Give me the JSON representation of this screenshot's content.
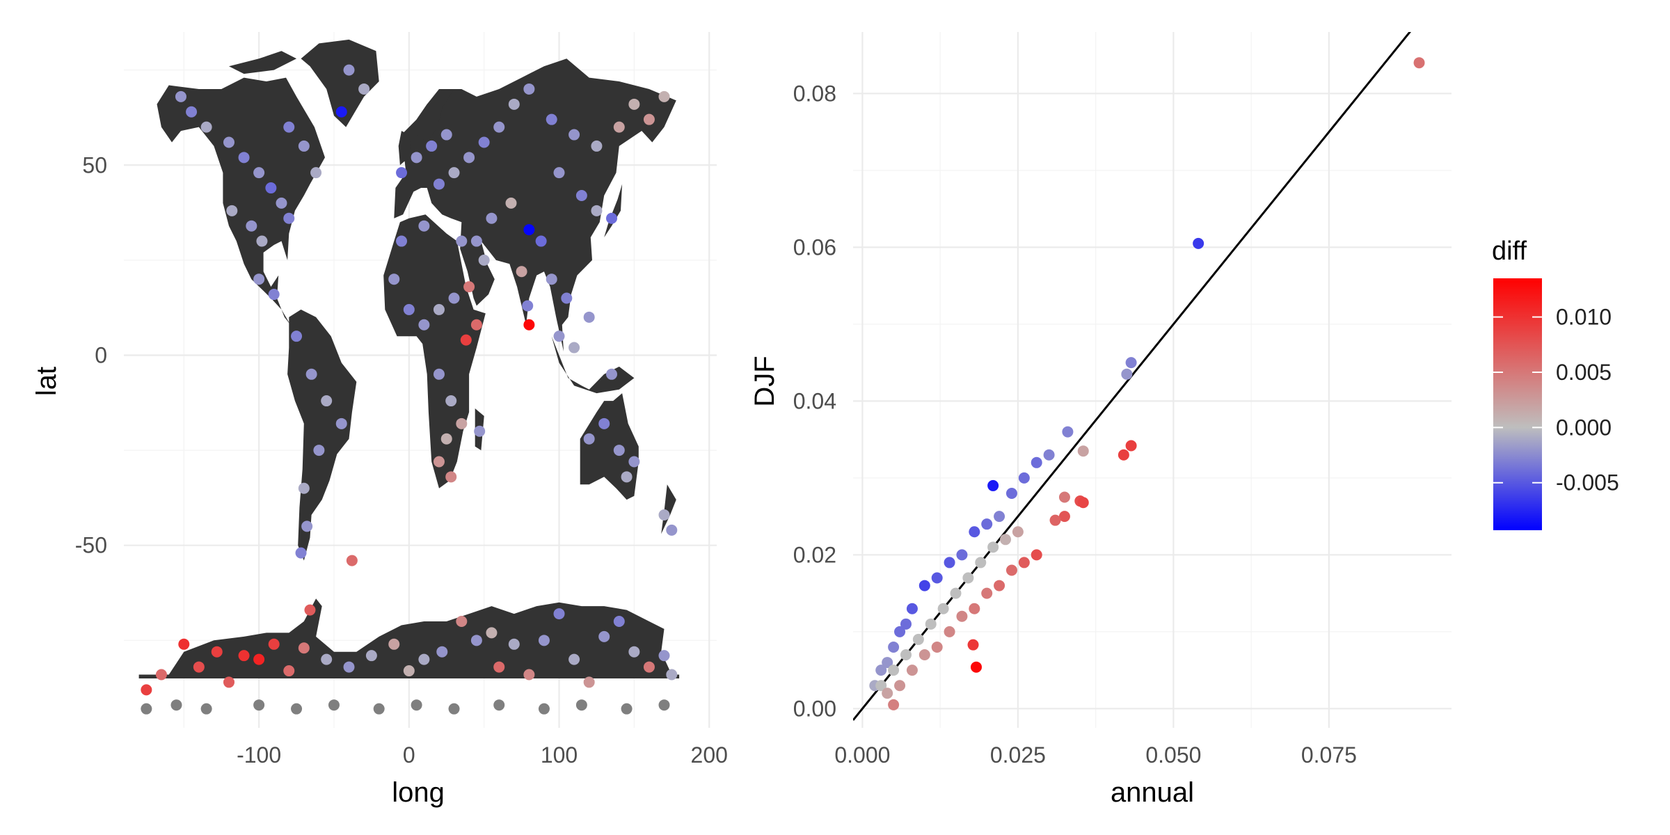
{
  "chart_data": [
    {
      "type": "scatter",
      "panel": "map",
      "xlabel": "long",
      "ylabel": "lat",
      "xlim": [
        -190,
        205
      ],
      "ylim": [
        -98,
        85
      ],
      "xticks": [
        -100,
        0,
        100,
        200
      ],
      "yticks": [
        -50,
        0,
        50
      ],
      "xtick_labels": [
        "-100",
        "0",
        "100",
        "200"
      ],
      "ytick_labels": [
        "-50",
        "0",
        "50"
      ],
      "background_layer": "world-land-polygons",
      "point_color_variable": "diff",
      "points": [
        {
          "x": -152,
          "y": 68,
          "diff": -0.002
        },
        {
          "x": -145,
          "y": 64,
          "diff": -0.003
        },
        {
          "x": -135,
          "y": 60,
          "diff": -0.001
        },
        {
          "x": -120,
          "y": 56,
          "diff": -0.002
        },
        {
          "x": -110,
          "y": 52,
          "diff": -0.003
        },
        {
          "x": -100,
          "y": 48,
          "diff": -0.002
        },
        {
          "x": -92,
          "y": 44,
          "diff": -0.004
        },
        {
          "x": -85,
          "y": 40,
          "diff": -0.002
        },
        {
          "x": -80,
          "y": 36,
          "diff": -0.003
        },
        {
          "x": -118,
          "y": 38,
          "diff": -0.001
        },
        {
          "x": -105,
          "y": 34,
          "diff": -0.002
        },
        {
          "x": -98,
          "y": 30,
          "diff": -0.001
        },
        {
          "x": -100,
          "y": 20,
          "diff": -0.002
        },
        {
          "x": -90,
          "y": 16,
          "diff": -0.003
        },
        {
          "x": -80,
          "y": 60,
          "diff": -0.003
        },
        {
          "x": -70,
          "y": 55,
          "diff": -0.002
        },
        {
          "x": -62,
          "y": 48,
          "diff": -0.001
        },
        {
          "x": -45,
          "y": 64,
          "diff": -0.008
        },
        {
          "x": -40,
          "y": 75,
          "diff": -0.002
        },
        {
          "x": -30,
          "y": 70,
          "diff": -0.001
        },
        {
          "x": -75,
          "y": 5,
          "diff": -0.003
        },
        {
          "x": -65,
          "y": -5,
          "diff": -0.002
        },
        {
          "x": -55,
          "y": -12,
          "diff": -0.001
        },
        {
          "x": -45,
          "y": -18,
          "diff": -0.002
        },
        {
          "x": -60,
          "y": -25,
          "diff": -0.002
        },
        {
          "x": -70,
          "y": -35,
          "diff": -0.001
        },
        {
          "x": -68,
          "y": -45,
          "diff": -0.002
        },
        {
          "x": -72,
          "y": -52,
          "diff": -0.003
        },
        {
          "x": -38,
          "y": -54,
          "diff": 0.006
        },
        {
          "x": -5,
          "y": 48,
          "diff": -0.004
        },
        {
          "x": 5,
          "y": 52,
          "diff": -0.002
        },
        {
          "x": 15,
          "y": 55,
          "diff": -0.003
        },
        {
          "x": 25,
          "y": 58,
          "diff": -0.002
        },
        {
          "x": 20,
          "y": 45,
          "diff": -0.003
        },
        {
          "x": 30,
          "y": 48,
          "diff": -0.001
        },
        {
          "x": 40,
          "y": 52,
          "diff": -0.002
        },
        {
          "x": 50,
          "y": 56,
          "diff": -0.003
        },
        {
          "x": 60,
          "y": 60,
          "diff": -0.002
        },
        {
          "x": 70,
          "y": 66,
          "diff": -0.001
        },
        {
          "x": 80,
          "y": 70,
          "diff": -0.002
        },
        {
          "x": 95,
          "y": 62,
          "diff": -0.003
        },
        {
          "x": 110,
          "y": 58,
          "diff": -0.002
        },
        {
          "x": 125,
          "y": 55,
          "diff": -0.001
        },
        {
          "x": 140,
          "y": 60,
          "diff": 0.002
        },
        {
          "x": 150,
          "y": 66,
          "diff": 0.001
        },
        {
          "x": 160,
          "y": 62,
          "diff": 0.003
        },
        {
          "x": 170,
          "y": 68,
          "diff": 0.001
        },
        {
          "x": 100,
          "y": 48,
          "diff": -0.002
        },
        {
          "x": 115,
          "y": 42,
          "diff": -0.003
        },
        {
          "x": 125,
          "y": 38,
          "diff": -0.001
        },
        {
          "x": 135,
          "y": 36,
          "diff": -0.004
        },
        {
          "x": 80,
          "y": 33,
          "diff": -0.009
        },
        {
          "x": 88,
          "y": 30,
          "diff": -0.004
        },
        {
          "x": 75,
          "y": 22,
          "diff": 0.002
        },
        {
          "x": 79,
          "y": 13,
          "diff": -0.003
        },
        {
          "x": 80,
          "y": 8,
          "diff": 0.013
        },
        {
          "x": 68,
          "y": 40,
          "diff": 0.001
        },
        {
          "x": 55,
          "y": 36,
          "diff": -0.002
        },
        {
          "x": 45,
          "y": 30,
          "diff": -0.002
        },
        {
          "x": 50,
          "y": 25,
          "diff": -0.001
        },
        {
          "x": 35,
          "y": 30,
          "diff": -0.002
        },
        {
          "x": 10,
          "y": 34,
          "diff": -0.002
        },
        {
          "x": -5,
          "y": 30,
          "diff": -0.003
        },
        {
          "x": -10,
          "y": 20,
          "diff": -0.002
        },
        {
          "x": 0,
          "y": 12,
          "diff": -0.003
        },
        {
          "x": 10,
          "y": 8,
          "diff": -0.002
        },
        {
          "x": 20,
          "y": 12,
          "diff": -0.001
        },
        {
          "x": 30,
          "y": 15,
          "diff": -0.002
        },
        {
          "x": 40,
          "y": 18,
          "diff": 0.005
        },
        {
          "x": 45,
          "y": 8,
          "diff": 0.006
        },
        {
          "x": 38,
          "y": 4,
          "diff": 0.009
        },
        {
          "x": 20,
          "y": -5,
          "diff": -0.002
        },
        {
          "x": 28,
          "y": -12,
          "diff": -0.001
        },
        {
          "x": 35,
          "y": -18,
          "diff": 0.002
        },
        {
          "x": 25,
          "y": -22,
          "diff": 0.001
        },
        {
          "x": 20,
          "y": -28,
          "diff": 0.003
        },
        {
          "x": 28,
          "y": -32,
          "diff": 0.004
        },
        {
          "x": 47,
          "y": -20,
          "diff": -0.002
        },
        {
          "x": 95,
          "y": 20,
          "diff": -0.002
        },
        {
          "x": 105,
          "y": 15,
          "diff": -0.003
        },
        {
          "x": 100,
          "y": 5,
          "diff": -0.002
        },
        {
          "x": 110,
          "y": 2,
          "diff": -0.001
        },
        {
          "x": 120,
          "y": 10,
          "diff": -0.002
        },
        {
          "x": 135,
          "y": -5,
          "diff": -0.002
        },
        {
          "x": 120,
          "y": -22,
          "diff": -0.002
        },
        {
          "x": 130,
          "y": -18,
          "diff": -0.003
        },
        {
          "x": 140,
          "y": -25,
          "diff": -0.002
        },
        {
          "x": 145,
          "y": -32,
          "diff": -0.001
        },
        {
          "x": 150,
          "y": -28,
          "diff": -0.002
        },
        {
          "x": 170,
          "y": -42,
          "diff": -0.001
        },
        {
          "x": 175,
          "y": -46,
          "diff": -0.002
        },
        {
          "x": -175,
          "y": -88,
          "diff": 0.009
        },
        {
          "x": -165,
          "y": -84,
          "diff": 0.006
        },
        {
          "x": -150,
          "y": -76,
          "diff": 0.01
        },
        {
          "x": -140,
          "y": -82,
          "diff": 0.008
        },
        {
          "x": -128,
          "y": -78,
          "diff": 0.009
        },
        {
          "x": -120,
          "y": -86,
          "diff": 0.007
        },
        {
          "x": -110,
          "y": -79,
          "diff": 0.01
        },
        {
          "x": -100,
          "y": -80,
          "diff": 0.011
        },
        {
          "x": -90,
          "y": -76,
          "diff": 0.009
        },
        {
          "x": -80,
          "y": -83,
          "diff": 0.006
        },
        {
          "x": -70,
          "y": -77,
          "diff": 0.005
        },
        {
          "x": -66,
          "y": -67,
          "diff": 0.007
        },
        {
          "x": -55,
          "y": -80,
          "diff": -0.001
        },
        {
          "x": -40,
          "y": -82,
          "diff": -0.002
        },
        {
          "x": -25,
          "y": -79,
          "diff": -0.001
        },
        {
          "x": -10,
          "y": -76,
          "diff": 0.002
        },
        {
          "x": 0,
          "y": -83,
          "diff": 0.001
        },
        {
          "x": 10,
          "y": -80,
          "diff": -0.001
        },
        {
          "x": 22,
          "y": -78,
          "diff": -0.002
        },
        {
          "x": 35,
          "y": -70,
          "diff": 0.004
        },
        {
          "x": 45,
          "y": -75,
          "diff": -0.002
        },
        {
          "x": 55,
          "y": -73,
          "diff": 0.001
        },
        {
          "x": 60,
          "y": -82,
          "diff": 0.006
        },
        {
          "x": 70,
          "y": -76,
          "diff": -0.001
        },
        {
          "x": 80,
          "y": -84,
          "diff": 0.004
        },
        {
          "x": 90,
          "y": -75,
          "diff": -0.002
        },
        {
          "x": 100,
          "y": -68,
          "diff": -0.003
        },
        {
          "x": 110,
          "y": -80,
          "diff": -0.001
        },
        {
          "x": 120,
          "y": -86,
          "diff": 0.003
        },
        {
          "x": 130,
          "y": -74,
          "diff": -0.002
        },
        {
          "x": 140,
          "y": -70,
          "diff": -0.003
        },
        {
          "x": 150,
          "y": -78,
          "diff": -0.001
        },
        {
          "x": 160,
          "y": -82,
          "diff": 0.005
        },
        {
          "x": 170,
          "y": -79,
          "diff": -0.002
        },
        {
          "x": 175,
          "y": -84,
          "diff": -0.001
        },
        {
          "x": -175,
          "y": -93,
          "diff": null
        },
        {
          "x": -155,
          "y": -92,
          "diff": null
        },
        {
          "x": -135,
          "y": -93,
          "diff": null
        },
        {
          "x": -100,
          "y": -92,
          "diff": null
        },
        {
          "x": -75,
          "y": -93,
          "diff": null
        },
        {
          "x": -50,
          "y": -92,
          "diff": null
        },
        {
          "x": -20,
          "y": -93,
          "diff": null
        },
        {
          "x": 5,
          "y": -92,
          "diff": null
        },
        {
          "x": 30,
          "y": -93,
          "diff": null
        },
        {
          "x": 60,
          "y": -92,
          "diff": null
        },
        {
          "x": 90,
          "y": -93,
          "diff": null
        },
        {
          "x": 115,
          "y": -92,
          "diff": null
        },
        {
          "x": 145,
          "y": -93,
          "diff": null
        },
        {
          "x": 170,
          "y": -92,
          "diff": null
        }
      ]
    },
    {
      "type": "scatter",
      "panel": "comparison",
      "xlabel": "annual",
      "ylabel": "DJF",
      "xlim": [
        -0.0015,
        0.0947
      ],
      "ylim": [
        -0.0025,
        0.088
      ],
      "xticks": [
        0,
        0.025,
        0.05,
        0.075
      ],
      "yticks": [
        0,
        0.02,
        0.04,
        0.06,
        0.08
      ],
      "xtick_labels": [
        "0.000",
        "0.025",
        "0.050",
        "0.075"
      ],
      "ytick_labels": [
        "0.00",
        "0.02",
        "0.04",
        "0.06",
        "0.08"
      ],
      "reference_line": {
        "intercept": 0,
        "slope": 1
      },
      "point_color_variable": "diff",
      "points": [
        {
          "x": 0.002,
          "y": 0.003,
          "diff": -0.001
        },
        {
          "x": 0.003,
          "y": 0.005,
          "diff": -0.002
        },
        {
          "x": 0.004,
          "y": 0.006,
          "diff": -0.002
        },
        {
          "x": 0.005,
          "y": 0.008,
          "diff": -0.003
        },
        {
          "x": 0.006,
          "y": 0.01,
          "diff": -0.004
        },
        {
          "x": 0.007,
          "y": 0.011,
          "diff": -0.004
        },
        {
          "x": 0.008,
          "y": 0.013,
          "diff": -0.005
        },
        {
          "x": 0.01,
          "y": 0.016,
          "diff": -0.006
        },
        {
          "x": 0.012,
          "y": 0.017,
          "diff": -0.005
        },
        {
          "x": 0.014,
          "y": 0.019,
          "diff": -0.005
        },
        {
          "x": 0.016,
          "y": 0.02,
          "diff": -0.004
        },
        {
          "x": 0.018,
          "y": 0.023,
          "diff": -0.005
        },
        {
          "x": 0.02,
          "y": 0.024,
          "diff": -0.004
        },
        {
          "x": 0.022,
          "y": 0.025,
          "diff": -0.003
        },
        {
          "x": 0.024,
          "y": 0.028,
          "diff": -0.004
        },
        {
          "x": 0.026,
          "y": 0.03,
          "diff": -0.004
        },
        {
          "x": 0.028,
          "y": 0.032,
          "diff": -0.004
        },
        {
          "x": 0.03,
          "y": 0.033,
          "diff": -0.003
        },
        {
          "x": 0.033,
          "y": 0.036,
          "diff": -0.003
        },
        {
          "x": 0.021,
          "y": 0.029,
          "diff": -0.008
        },
        {
          "x": 0.054,
          "y": 0.0605,
          "diff": -0.0065
        },
        {
          "x": 0.0425,
          "y": 0.0435,
          "diff": -0.002
        },
        {
          "x": 0.0432,
          "y": 0.045,
          "diff": -0.003
        },
        {
          "x": 0.003,
          "y": 0.003,
          "diff": 0.0
        },
        {
          "x": 0.005,
          "y": 0.005,
          "diff": 0.0
        },
        {
          "x": 0.007,
          "y": 0.007,
          "diff": 0.0
        },
        {
          "x": 0.009,
          "y": 0.009,
          "diff": 0.0
        },
        {
          "x": 0.011,
          "y": 0.011,
          "diff": 0.0
        },
        {
          "x": 0.013,
          "y": 0.013,
          "diff": 0.0
        },
        {
          "x": 0.015,
          "y": 0.015,
          "diff": 0.0
        },
        {
          "x": 0.017,
          "y": 0.017,
          "diff": 0.0
        },
        {
          "x": 0.019,
          "y": 0.019,
          "diff": 0.0
        },
        {
          "x": 0.021,
          "y": 0.021,
          "diff": 0.0
        },
        {
          "x": 0.023,
          "y": 0.022,
          "diff": 0.001
        },
        {
          "x": 0.025,
          "y": 0.023,
          "diff": 0.002
        },
        {
          "x": 0.0355,
          "y": 0.0335,
          "diff": 0.002
        },
        {
          "x": 0.004,
          "y": 0.002,
          "diff": 0.002
        },
        {
          "x": 0.006,
          "y": 0.003,
          "diff": 0.003
        },
        {
          "x": 0.008,
          "y": 0.005,
          "diff": 0.003
        },
        {
          "x": 0.01,
          "y": 0.007,
          "diff": 0.003
        },
        {
          "x": 0.012,
          "y": 0.008,
          "diff": 0.004
        },
        {
          "x": 0.014,
          "y": 0.01,
          "diff": 0.004
        },
        {
          "x": 0.016,
          "y": 0.012,
          "diff": 0.004
        },
        {
          "x": 0.018,
          "y": 0.013,
          "diff": 0.005
        },
        {
          "x": 0.02,
          "y": 0.015,
          "diff": 0.005
        },
        {
          "x": 0.022,
          "y": 0.016,
          "diff": 0.006
        },
        {
          "x": 0.024,
          "y": 0.018,
          "diff": 0.006
        },
        {
          "x": 0.026,
          "y": 0.019,
          "diff": 0.007
        },
        {
          "x": 0.028,
          "y": 0.02,
          "diff": 0.008
        },
        {
          "x": 0.005,
          "y": 0.0005,
          "diff": 0.0045
        },
        {
          "x": 0.0325,
          "y": 0.0275,
          "diff": 0.005
        },
        {
          "x": 0.0325,
          "y": 0.025,
          "diff": 0.0075
        },
        {
          "x": 0.035,
          "y": 0.027,
          "diff": 0.008
        },
        {
          "x": 0.0355,
          "y": 0.0268,
          "diff": 0.0087
        },
        {
          "x": 0.031,
          "y": 0.0245,
          "diff": 0.0065
        },
        {
          "x": 0.042,
          "y": 0.033,
          "diff": 0.009
        },
        {
          "x": 0.0432,
          "y": 0.0342,
          "diff": 0.009
        },
        {
          "x": 0.0178,
          "y": 0.0083,
          "diff": 0.0095
        },
        {
          "x": 0.0183,
          "y": 0.0054,
          "diff": 0.0129
        },
        {
          "x": 0.0895,
          "y": 0.084,
          "diff": 0.0055
        }
      ]
    }
  ],
  "legend": {
    "title": "diff",
    "labels": [
      "0.010",
      "0.005",
      "0.000",
      "-0.005"
    ],
    "breaks": [
      0.01,
      0.005,
      0.0,
      -0.005
    ],
    "limits": [
      -0.0093,
      0.0135
    ],
    "colors": {
      "low": "#0000ff",
      "mid": "#bebebe",
      "high": "#ff0000",
      "na": "#7f7f7f"
    }
  }
}
